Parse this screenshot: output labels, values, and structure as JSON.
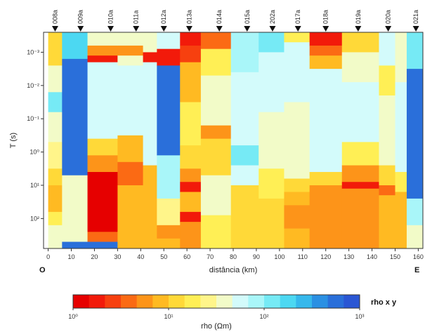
{
  "chart_data": {
    "type": "heatmap",
    "xlabel": "distância (km)",
    "ylabel": "T (s)",
    "xlim": [
      -2,
      162
    ],
    "xticks": [
      0,
      10,
      20,
      30,
      40,
      50,
      60,
      70,
      80,
      90,
      100,
      110,
      120,
      130,
      140,
      150,
      160
    ],
    "y_scale": "log",
    "ylim_decades": [
      -3.6,
      2.9
    ],
    "yticks": [
      {
        "exp": -3,
        "label": "10⁻³"
      },
      {
        "exp": -2,
        "label": "10⁻²"
      },
      {
        "exp": -1,
        "label": "10⁻¹"
      },
      {
        "exp": 0,
        "label": "10⁰"
      },
      {
        "exp": 1,
        "label": "10¹"
      },
      {
        "exp": 2,
        "label": "10²"
      }
    ],
    "orientation_left": "O",
    "orientation_right": "E",
    "stations": [
      {
        "name": "008a",
        "x": 3
      },
      {
        "name": "009a",
        "x": 14
      },
      {
        "name": "010a",
        "x": 27
      },
      {
        "name": "011a",
        "x": 38
      },
      {
        "name": "012a",
        "x": 50
      },
      {
        "name": "013a",
        "x": 61
      },
      {
        "name": "014a",
        "x": 74
      },
      {
        "name": "015a",
        "x": 86
      },
      {
        "name": "202a",
        "x": 97
      },
      {
        "name": "017a",
        "x": 108
      },
      {
        "name": "018a",
        "x": 120
      },
      {
        "name": "019a",
        "x": 134
      },
      {
        "name": "020a",
        "x": 147
      },
      {
        "name": "021a",
        "x": 159
      }
    ],
    "colorbar": {
      "label": "rho (Ωm)",
      "title": "rho x y",
      "scale": "log",
      "range_exp": [
        0,
        3
      ],
      "ticks": [
        {
          "exp": 0,
          "label": "10⁰"
        },
        {
          "exp": 1,
          "label": "10¹"
        },
        {
          "exp": 2,
          "label": "10²"
        },
        {
          "exp": 3,
          "label": "10³"
        }
      ],
      "colors": [
        "#e60000",
        "#f21a0a",
        "#f7400f",
        "#fb6a14",
        "#fd9419",
        "#ffba22",
        "#ffd938",
        "#ffef55",
        "#fff58a",
        "#f2fbc8",
        "#d3fbfb",
        "#a9f6f9",
        "#76eaf5",
        "#4cd8f2",
        "#36b8ec",
        "#2b90e3",
        "#2a6fda",
        "#2a56d4"
      ]
    },
    "columns": [
      {
        "x0": 0,
        "x1": 6,
        "cells": [
          [
            -3.6,
            -2.6,
            0.38
          ],
          [
            -2.6,
            -1.8,
            0.55
          ],
          [
            -1.8,
            -1.2,
            0.68
          ],
          [
            -1.2,
            -0.3,
            0.55
          ],
          [
            -0.3,
            0.5,
            0.48
          ],
          [
            0.5,
            1.0,
            0.35
          ],
          [
            1.0,
            1.8,
            0.32
          ],
          [
            1.8,
            2.2,
            0.42
          ],
          [
            2.2,
            2.9,
            0.52
          ]
        ]
      },
      {
        "x0": 6,
        "x1": 17,
        "cells": [
          [
            -3.6,
            -2.8,
            0.78
          ],
          [
            -2.8,
            0.7,
            0.93
          ],
          [
            0.7,
            2.0,
            0.55
          ],
          [
            2.0,
            2.7,
            0.5
          ],
          [
            2.7,
            2.9,
            0.95
          ]
        ]
      },
      {
        "x0": 17,
        "x1": 30,
        "cells": [
          [
            -3.6,
            -3.2,
            0.55
          ],
          [
            -3.2,
            -2.9,
            0.22
          ],
          [
            -2.9,
            -2.7,
            0.03
          ],
          [
            -2.7,
            -0.4,
            0.56
          ],
          [
            -0.4,
            0.1,
            0.34
          ],
          [
            0.1,
            0.6,
            0.22
          ],
          [
            0.6,
            2.4,
            0.02
          ],
          [
            2.4,
            2.7,
            0.2
          ],
          [
            2.7,
            2.9,
            0.95
          ]
        ]
      },
      {
        "x0": 30,
        "x1": 41,
        "cells": [
          [
            -3.6,
            -3.2,
            0.5
          ],
          [
            -3.2,
            -2.9,
            0.22
          ],
          [
            -2.9,
            -2.6,
            0.5
          ],
          [
            -2.6,
            -0.5,
            0.56
          ],
          [
            -0.5,
            0.3,
            0.27
          ],
          [
            0.3,
            1.0,
            0.2
          ],
          [
            1.0,
            2.9,
            0.32
          ]
        ]
      },
      {
        "x0": 41,
        "x1": 47,
        "cells": [
          [
            -3.6,
            -3.0,
            0.5
          ],
          [
            -3.0,
            -2.7,
            0.05
          ],
          [
            -2.7,
            0.4,
            0.58
          ],
          [
            0.4,
            2.9,
            0.3
          ]
        ]
      },
      {
        "x0": 47,
        "x1": 57,
        "cells": [
          [
            -3.6,
            -3.1,
            0.58
          ],
          [
            -3.1,
            -2.6,
            0.03
          ],
          [
            -2.6,
            0.1,
            0.92
          ],
          [
            0.1,
            1.4,
            0.62
          ],
          [
            1.4,
            2.2,
            0.48
          ],
          [
            2.2,
            2.6,
            0.26
          ],
          [
            2.6,
            2.9,
            0.32
          ]
        ]
      },
      {
        "x0": 57,
        "x1": 66,
        "cells": [
          [
            -3.6,
            -3.2,
            0.05
          ],
          [
            -3.2,
            -2.7,
            0.1
          ],
          [
            -2.7,
            -1.5,
            0.28
          ],
          [
            -1.5,
            -0.2,
            0.44
          ],
          [
            -0.2,
            0.5,
            0.33
          ],
          [
            0.5,
            0.9,
            0.22
          ],
          [
            0.9,
            1.2,
            0.06
          ],
          [
            1.2,
            1.8,
            0.31
          ],
          [
            1.8,
            2.1,
            0.06
          ],
          [
            2.1,
            2.9,
            0.24
          ]
        ]
      },
      {
        "x0": 66,
        "x1": 79,
        "cells": [
          [
            -3.6,
            -3.1,
            0.2
          ],
          [
            -3.1,
            -2.3,
            0.4
          ],
          [
            -2.3,
            -0.8,
            0.5
          ],
          [
            -0.8,
            -0.4,
            0.22
          ],
          [
            -0.4,
            0.7,
            0.36
          ],
          [
            0.7,
            1.9,
            0.55
          ],
          [
            1.9,
            2.9,
            0.4
          ]
        ]
      },
      {
        "x0": 79,
        "x1": 91,
        "cells": [
          [
            -3.6,
            -2.4,
            0.62
          ],
          [
            -2.4,
            -0.2,
            0.56
          ],
          [
            -0.2,
            0.4,
            0.7
          ],
          [
            0.4,
            1.0,
            0.58
          ],
          [
            1.0,
            2.9,
            0.36
          ]
        ]
      },
      {
        "x0": 91,
        "x1": 102,
        "cells": [
          [
            -3.6,
            -3.0,
            0.68
          ],
          [
            -3.0,
            -1.2,
            0.58
          ],
          [
            -1.2,
            0.5,
            0.55
          ],
          [
            0.5,
            1.4,
            0.4
          ],
          [
            1.4,
            2.9,
            0.34
          ]
        ]
      },
      {
        "x0": 102,
        "x1": 113,
        "cells": [
          [
            -3.6,
            -3.3,
            0.4
          ],
          [
            -3.3,
            -1.5,
            0.56
          ],
          [
            -1.5,
            -0.4,
            0.55
          ],
          [
            -0.4,
            0.8,
            0.5
          ],
          [
            0.8,
            1.2,
            0.33
          ],
          [
            1.2,
            1.6,
            0.28
          ],
          [
            1.6,
            2.3,
            0.25
          ],
          [
            2.3,
            2.9,
            0.3
          ]
        ]
      },
      {
        "x0": 113,
        "x1": 127,
        "cells": [
          [
            -3.6,
            -3.2,
            0.03
          ],
          [
            -3.2,
            -2.9,
            0.15
          ],
          [
            -2.9,
            -2.5,
            0.32
          ],
          [
            -2.5,
            -1.3,
            0.56
          ],
          [
            -1.3,
            0.6,
            0.56
          ],
          [
            0.6,
            1.0,
            0.34
          ],
          [
            1.0,
            2.9,
            0.23
          ]
        ]
      },
      {
        "x0": 127,
        "x1": 143,
        "cells": [
          [
            -3.6,
            -3.0,
            0.33
          ],
          [
            -3.0,
            -2.1,
            0.55
          ],
          [
            -2.1,
            -0.3,
            0.56
          ],
          [
            -0.3,
            0.4,
            0.44
          ],
          [
            0.4,
            0.9,
            0.22
          ],
          [
            0.9,
            1.1,
            0.05
          ],
          [
            1.1,
            1.6,
            0.22
          ],
          [
            1.6,
            2.9,
            0.26
          ]
        ]
      },
      {
        "x0": 143,
        "x1": 150,
        "cells": [
          [
            -3.6,
            -2.6,
            0.56
          ],
          [
            -2.6,
            -1.7,
            0.44
          ],
          [
            -1.7,
            0.4,
            0.55
          ],
          [
            0.4,
            1.0,
            0.34
          ],
          [
            1.0,
            1.3,
            0.18
          ],
          [
            1.3,
            2.9,
            0.3
          ]
        ]
      },
      {
        "x0": 150,
        "x1": 155,
        "cells": [
          [
            -3.6,
            -2.1,
            0.55
          ],
          [
            -2.1,
            0.6,
            0.58
          ],
          [
            0.6,
            1.2,
            0.4
          ],
          [
            1.2,
            2.9,
            0.3
          ]
        ]
      },
      {
        "x0": 155,
        "x1": 162,
        "cells": [
          [
            -3.6,
            -2.5,
            0.7
          ],
          [
            -2.5,
            1.4,
            0.92
          ],
          [
            1.4,
            2.2,
            0.62
          ],
          [
            2.2,
            2.9,
            0.55
          ]
        ]
      }
    ]
  }
}
